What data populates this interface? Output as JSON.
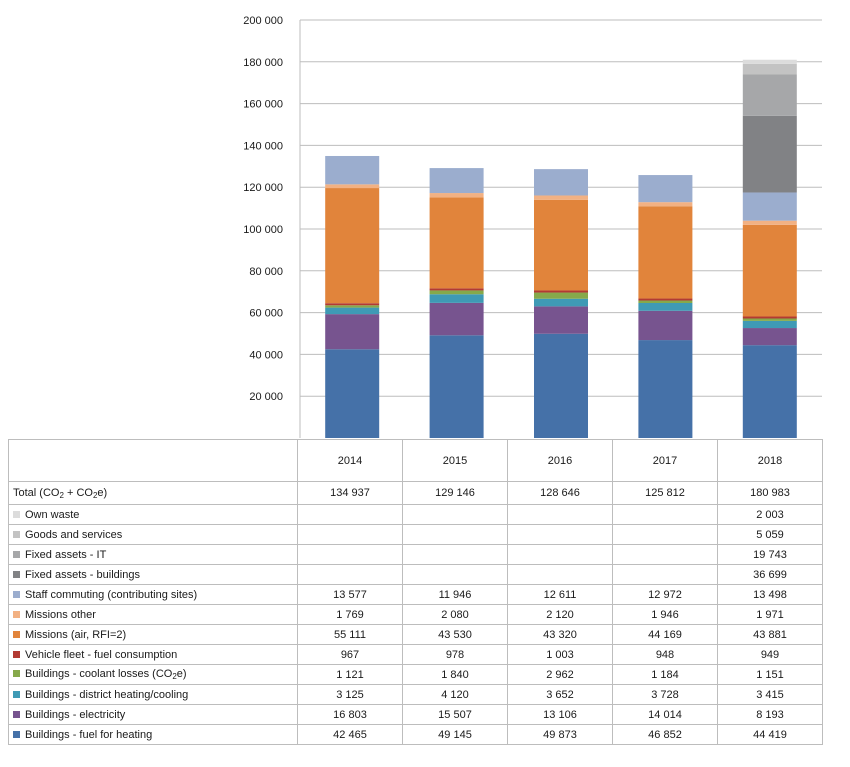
{
  "chart_data": {
    "type": "bar",
    "stacked": true,
    "categories": [
      "2014",
      "2015",
      "2016",
      "2017",
      "2018"
    ],
    "yticks": [
      "20 000",
      "40 000",
      "60 000",
      "80 000",
      "100 000",
      "120 000",
      "140 000",
      "160 000",
      "180 000",
      "200 000"
    ],
    "ylim": [
      0,
      200000
    ],
    "grid": true,
    "total": {
      "name": "Total (CO₂ + CO₂e)",
      "values": [
        134937,
        129146,
        128646,
        125812,
        180983
      ],
      "labels": [
        "134 937",
        "129 146",
        "128 646",
        "125 812",
        "180 983"
      ]
    },
    "series": [
      {
        "name": "Own waste",
        "color": "#dcdcdc",
        "values": [
          null,
          null,
          null,
          null,
          2003
        ],
        "labels": [
          "",
          "",
          "",
          "",
          "2 003"
        ]
      },
      {
        "name": "Goods and services",
        "color": "#c3c3c3",
        "values": [
          null,
          null,
          null,
          null,
          5059
        ],
        "labels": [
          "",
          "",
          "",
          "",
          "5 059"
        ]
      },
      {
        "name": "Fixed assets - IT",
        "color": "#a6a7a9",
        "values": [
          null,
          null,
          null,
          null,
          19743
        ],
        "labels": [
          "",
          "",
          "",
          "",
          "19 743"
        ]
      },
      {
        "name": "Fixed assets - buildings",
        "color": "#818285",
        "values": [
          null,
          null,
          null,
          null,
          36699
        ],
        "labels": [
          "",
          "",
          "",
          "",
          "36 699"
        ]
      },
      {
        "name": "Staff commuting (contributing sites)",
        "color": "#9badce",
        "values": [
          13577,
          11946,
          12611,
          12972,
          13498
        ],
        "labels": [
          "13 577",
          "11 946",
          "12 611",
          "12 972",
          "13 498"
        ]
      },
      {
        "name": "Missions other",
        "color": "#f2b183",
        "values": [
          1769,
          2080,
          2120,
          1946,
          1971
        ],
        "labels": [
          "1 769",
          "2 080",
          "2 120",
          "1 946",
          "1 971"
        ]
      },
      {
        "name": "Missions (air, RFI=2)",
        "color": "#e1843b",
        "values": [
          55111,
          43530,
          43320,
          44169,
          43881
        ],
        "labels": [
          "55 111",
          "43 530",
          "43 320",
          "44 169",
          "43 881"
        ]
      },
      {
        "name": "Vehicle fleet - fuel consumption",
        "color": "#b23a33",
        "values": [
          967,
          978,
          1003,
          948,
          949
        ],
        "labels": [
          "967",
          "978",
          "1 003",
          "948",
          "949"
        ]
      },
      {
        "name": "Buildings - coolant losses (CO₂e)",
        "color": "#86a94b",
        "values": [
          1121,
          1840,
          2962,
          1184,
          1151
        ],
        "labels": [
          "1 121",
          "1 840",
          "2 962",
          "1 184",
          "1 151"
        ]
      },
      {
        "name": "Buildings - district heating/cooling",
        "color": "#3f9ab5",
        "values": [
          3125,
          4120,
          3652,
          3728,
          3415
        ],
        "labels": [
          "3 125",
          "4 120",
          "3 652",
          "3 728",
          "3 415"
        ]
      },
      {
        "name": "Buildings  - electricity",
        "color": "#77548f",
        "values": [
          16803,
          15507,
          13106,
          14014,
          8193
        ],
        "labels": [
          "16 803",
          "15 507",
          "13 106",
          "14 014",
          "8 193"
        ]
      },
      {
        "name": "Buildings - fuel for heating",
        "color": "#4571a8",
        "values": [
          42465,
          49145,
          49873,
          46852,
          44419
        ],
        "labels": [
          "42 465",
          "49 145",
          "49 873",
          "46 852",
          "44 419"
        ]
      }
    ]
  }
}
